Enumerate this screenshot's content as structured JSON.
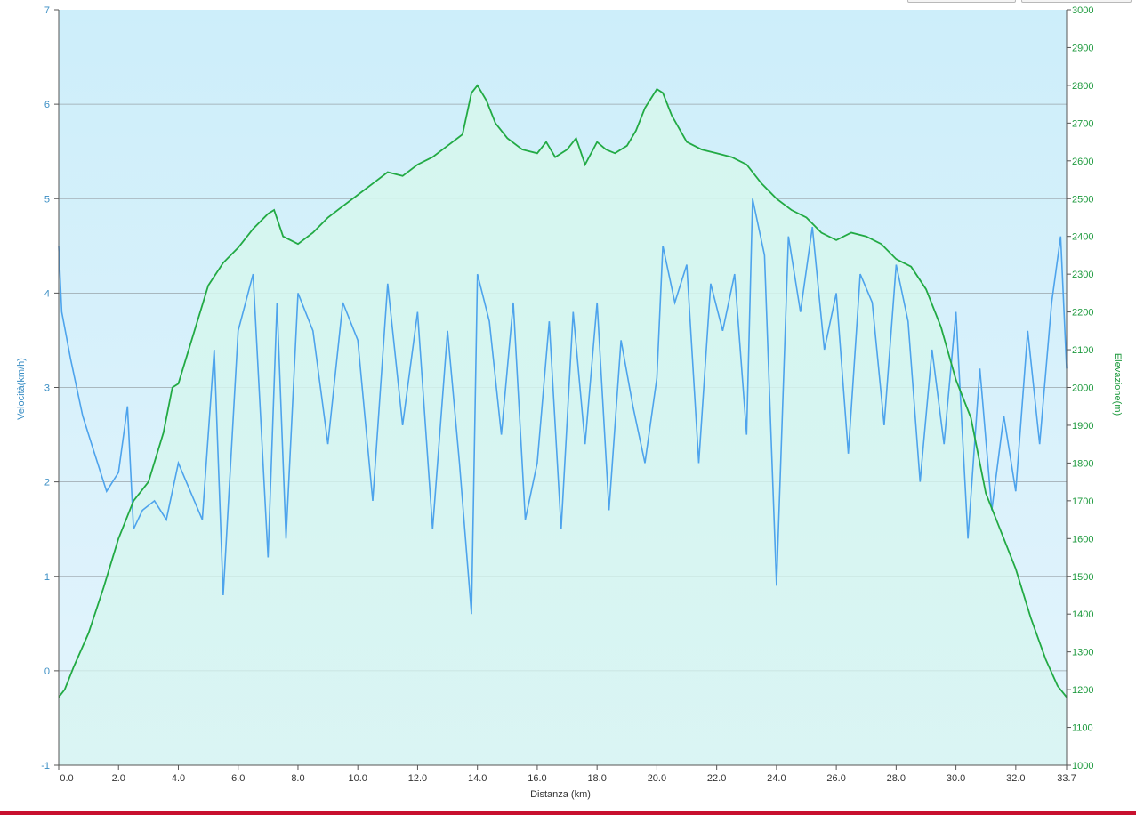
{
  "chart_data": {
    "type": "line",
    "title": "",
    "xlabel": "Distanza  (km)",
    "ylabel_left": "Velocità(km/h)",
    "ylabel_right": "Elevazione(m)",
    "xlim": [
      0,
      33.7
    ],
    "ylim_left": [
      -1,
      7
    ],
    "ylim_right": [
      1000,
      3000
    ],
    "grid": true,
    "x_tick_labels": [
      "0.0",
      "2.0",
      "4.0",
      "6.0",
      "8.0",
      "10.0",
      "12.0",
      "14.0",
      "16.0",
      "18.0",
      "20.0",
      "22.0",
      "24.0",
      "26.0",
      "28.0",
      "30.0",
      "32.0",
      "33.7"
    ],
    "x_tick_values": [
      0,
      2,
      4,
      6,
      8,
      10,
      12,
      14,
      16,
      18,
      20,
      22,
      24,
      26,
      28,
      30,
      32,
      33.7
    ],
    "y_left_tick_labels": [
      "7",
      "6",
      "5",
      "4",
      "3",
      "2",
      "1",
      "0",
      "-1"
    ],
    "y_right_tick_labels": [
      "3000",
      "2900",
      "2800",
      "2700",
      "2600",
      "2500",
      "2400",
      "2300",
      "2200",
      "2100",
      "2000",
      "1900",
      "1800",
      "1700",
      "1600",
      "1500",
      "1400",
      "1300",
      "1200",
      "1100",
      "1000"
    ],
    "colors": {
      "speed": "#4da3ec",
      "elevation": "#22aa44",
      "left_axis_text": "#3a8ec4",
      "right_axis_text": "#1e9a3e"
    },
    "series": [
      {
        "axis": "right",
        "x": [
          0,
          0.2,
          0.5,
          1,
          1.5,
          2,
          2.5,
          3,
          3.5,
          3.8,
          4,
          4.5,
          5,
          5.5,
          6,
          6.5,
          7,
          7.2,
          7.5,
          8,
          8.5,
          9,
          9.5,
          10,
          10.5,
          11,
          11.5,
          12,
          12.5,
          13,
          13.5,
          13.8,
          14,
          14.3,
          14.6,
          15,
          15.5,
          16,
          16.3,
          16.6,
          17,
          17.3,
          17.6,
          18,
          18.3,
          18.6,
          19,
          19.3,
          19.6,
          20,
          20.2,
          20.5,
          21,
          21.5,
          22,
          22.5,
          23,
          23.5,
          24,
          24.5,
          25,
          25.5,
          26,
          26.5,
          27,
          27.5,
          28,
          28.5,
          29,
          29.5,
          30,
          30.5,
          31,
          31.5,
          32,
          32.5,
          33,
          33.4,
          33.7
        ],
        "values": [
          1180,
          1200,
          1260,
          1350,
          1470,
          1600,
          1700,
          1750,
          1880,
          2000,
          2010,
          2140,
          2270,
          2330,
          2370,
          2420,
          2460,
          2470,
          2400,
          2380,
          2410,
          2450,
          2480,
          2510,
          2540,
          2570,
          2560,
          2590,
          2610,
          2640,
          2670,
          2780,
          2800,
          2760,
          2700,
          2660,
          2630,
          2620,
          2650,
          2610,
          2630,
          2660,
          2590,
          2650,
          2630,
          2620,
          2640,
          2680,
          2740,
          2790,
          2780,
          2720,
          2650,
          2630,
          2620,
          2610,
          2590,
          2540,
          2500,
          2470,
          2450,
          2410,
          2390,
          2410,
          2400,
          2380,
          2340,
          2320,
          2260,
          2160,
          2020,
          1920,
          1720,
          1620,
          1520,
          1390,
          1280,
          1210,
          1180
        ]
      },
      {
        "axis": "left",
        "x": [
          0,
          0.1,
          0.4,
          0.8,
          1.2,
          1.6,
          2,
          2.3,
          2.5,
          2.8,
          3.2,
          3.6,
          4,
          4.4,
          4.8,
          5.2,
          5.5,
          6,
          6.5,
          7,
          7.3,
          7.6,
          8,
          8.5,
          9,
          9.5,
          10,
          10.5,
          11,
          11.5,
          12,
          12.5,
          13,
          13.4,
          13.8,
          14,
          14.4,
          14.8,
          15.2,
          15.6,
          16,
          16.4,
          16.8,
          17.2,
          17.6,
          18,
          18.4,
          18.8,
          19.2,
          19.6,
          20,
          20.2,
          20.6,
          21,
          21.4,
          21.8,
          22.2,
          22.6,
          23,
          23.2,
          23.6,
          24,
          24.4,
          24.8,
          25.2,
          25.6,
          26,
          26.4,
          26.8,
          27.2,
          27.6,
          28,
          28.4,
          28.8,
          29.2,
          29.6,
          30,
          30.4,
          30.8,
          31.2,
          31.6,
          32,
          32.4,
          32.8,
          33.2,
          33.5,
          33.7
        ],
        "values": [
          4.5,
          3.8,
          3.3,
          2.7,
          2.3,
          1.9,
          2.1,
          2.8,
          1.5,
          1.7,
          1.8,
          1.6,
          2.2,
          1.9,
          1.6,
          3.4,
          0.8,
          3.6,
          4.2,
          1.2,
          3.9,
          1.4,
          4.0,
          3.6,
          2.4,
          3.9,
          3.5,
          1.8,
          4.1,
          2.6,
          3.8,
          1.5,
          3.6,
          2.2,
          0.6,
          4.2,
          3.7,
          2.5,
          3.9,
          1.6,
          2.2,
          3.7,
          1.5,
          3.8,
          2.4,
          3.9,
          1.7,
          3.5,
          2.8,
          2.2,
          3.1,
          4.5,
          3.9,
          4.3,
          2.2,
          4.1,
          3.6,
          4.2,
          2.5,
          5.0,
          4.4,
          0.9,
          4.6,
          3.8,
          4.7,
          3.4,
          4.0,
          2.3,
          4.2,
          3.9,
          2.6,
          4.3,
          3.7,
          2.0,
          3.4,
          2.4,
          3.8,
          1.4,
          3.2,
          1.7,
          2.7,
          1.9,
          3.6,
          2.4,
          3.9,
          4.6,
          3.2
        ]
      }
    ]
  }
}
